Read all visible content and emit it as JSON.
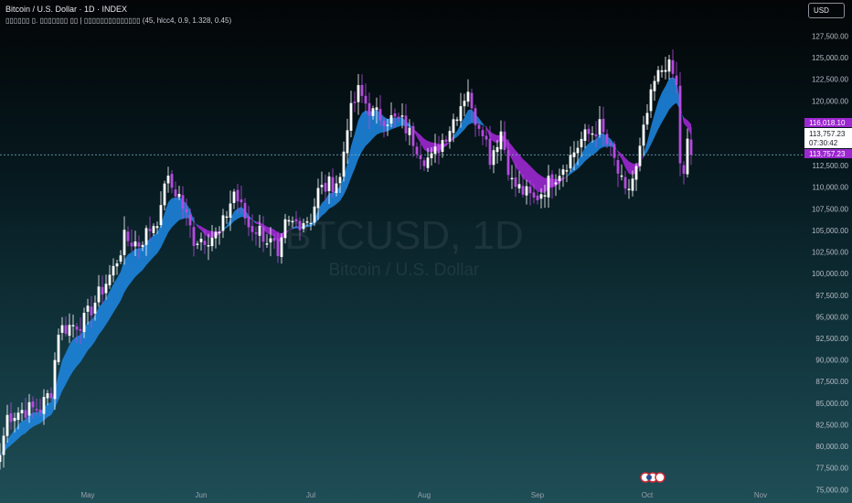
{
  "header": {
    "title": "Bitcoin / U.S. Dollar · 1D · INDEX",
    "indicator": "▯▯▯▯▯▯ ▯. ▯▯▯▯▯▯▯ ▯▯ | ▯▯▯▯▯▯▯▯▯▯▯▯▯▯ (45, hlcc4, 0.9, 1.328, 0.45)"
  },
  "toolbar": {
    "currency": "USD"
  },
  "watermark": {
    "symbol": "BTCUSD, 1D",
    "name": "Bitcoin / U.S. Dollar"
  },
  "price_labels": {
    "upper_band": "116,018.10",
    "last_price": "113,757.23",
    "countdown": "07:30:42",
    "lower_band": "113,757.23"
  },
  "colors": {
    "band_bull": "#1e88e5",
    "band_bull_light": "#2a9df4",
    "band_bear": "#9c27d0",
    "candle_bull": "#ffffff",
    "candle_bear": "#b64bdf",
    "last_line": "#7fb3c8"
  },
  "chart_data": {
    "type": "candlestick",
    "title": "Bitcoin / U.S. Dollar · 1D · INDEX",
    "ylim": [
      74500,
      128500
    ],
    "y_ticks": [
      "127,500.00",
      "125,000.00",
      "122,500.00",
      "120,000.00",
      "117,500.00",
      "115,000.00",
      "112,500.00",
      "110,000.00",
      "107,500.00",
      "105,000.00",
      "102,500.00",
      "100,000.00",
      "97,500.00",
      "95,000.00",
      "92,500.00",
      "90,000.00",
      "87,500.00",
      "85,000.00",
      "82,500.00",
      "80,000.00",
      "77,500.00",
      "75,000.00"
    ],
    "x_ticks": [
      "May",
      "Jun",
      "Jul",
      "Aug",
      "Sep",
      "Oct",
      "Nov"
    ],
    "x_range": [
      "2025-04-07",
      "2025-11-13"
    ],
    "x_tick_dates": [
      "2025-05-01",
      "2025-06-01",
      "2025-07-01",
      "2025-08-01",
      "2025-09-01",
      "2025-10-01",
      "2025-11-01"
    ],
    "close_anchors": [
      [
        "2025-04-07",
        79000
      ],
      [
        "2025-04-09",
        83500
      ],
      [
        "2025-04-13",
        84200
      ],
      [
        "2025-04-18",
        84400
      ],
      [
        "2025-04-21",
        86500
      ],
      [
        "2025-04-23",
        93500
      ],
      [
        "2025-04-30",
        94500
      ],
      [
        "2025-05-08",
        100500
      ],
      [
        "2025-05-11",
        104000
      ],
      [
        "2025-05-15",
        103500
      ],
      [
        "2025-05-21",
        107000
      ],
      [
        "2025-05-22",
        111000
      ],
      [
        "2025-05-26",
        109000
      ],
      [
        "2025-05-30",
        104000
      ],
      [
        "2025-06-06",
        104500
      ],
      [
        "2025-06-10",
        109500
      ],
      [
        "2025-06-14",
        105500
      ],
      [
        "2025-06-17",
        105000
      ],
      [
        "2025-06-21",
        103000
      ],
      [
        "2025-06-22",
        101000
      ],
      [
        "2025-06-24",
        105500
      ],
      [
        "2025-07-01",
        106500
      ],
      [
        "2025-07-03",
        109500
      ],
      [
        "2025-07-09",
        111000
      ],
      [
        "2025-07-11",
        117500
      ],
      [
        "2025-07-14",
        121000
      ],
      [
        "2025-07-18",
        118500
      ],
      [
        "2025-07-26",
        117500
      ],
      [
        "2025-08-01",
        113500
      ],
      [
        "2025-08-03",
        113200
      ],
      [
        "2025-08-08",
        117000
      ],
      [
        "2025-08-13",
        121500
      ],
      [
        "2025-08-14",
        118500
      ],
      [
        "2025-08-17",
        117000
      ],
      [
        "2025-08-19",
        113500
      ],
      [
        "2025-08-22",
        116500
      ],
      [
        "2025-08-25",
        110500
      ],
      [
        "2025-08-31",
        108500
      ],
      [
        "2025-09-01",
        109000
      ],
      [
        "2025-09-05",
        111000
      ],
      [
        "2025-09-10",
        113500
      ],
      [
        "2025-09-13",
        115500
      ],
      [
        "2025-09-18",
        117000
      ],
      [
        "2025-09-22",
        113000
      ],
      [
        "2025-09-25",
        109000
      ],
      [
        "2025-09-28",
        112000
      ],
      [
        "2025-10-01",
        118500
      ],
      [
        "2025-10-03",
        122000
      ],
      [
        "2025-10-06",
        124500
      ],
      [
        "2025-10-08",
        123000
      ],
      [
        "2025-10-09",
        121500
      ],
      [
        "2025-10-10",
        113000
      ],
      [
        "2025-10-11",
        111000
      ],
      [
        "2025-10-12",
        115000
      ],
      [
        "2025-10-13",
        113757.23
      ]
    ],
    "upper_band_last": 116018.1,
    "lower_band_last": 113757.23,
    "last_price": 113757.23
  }
}
